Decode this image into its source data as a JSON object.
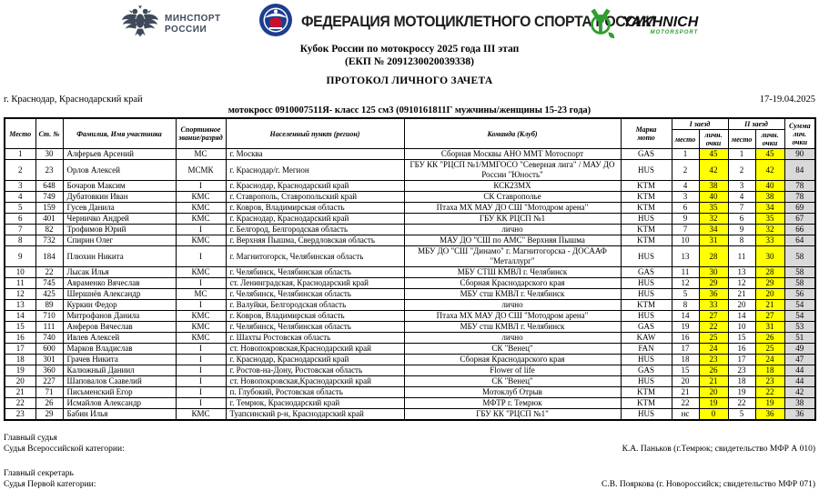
{
  "header": {
    "minsport_line1": "МИНСПОРТ",
    "minsport_line2": "РОССИИ",
    "fmsr_title": "ФЕДЕРАЦИЯ МОТОЦИКЛЕТНОГО СПОРТА РОССИИ",
    "yakhnich_name": "YAKHNICH",
    "yakhnich_sub": "MOTORSPORT"
  },
  "title": {
    "line1": "Кубок России по мотокроссу 2025 года III этап",
    "line2": "(ЕКП № 2091230020039338)",
    "line3": "ПРОТОКОЛ ЛИЧНОГО ЗАЧЕТА"
  },
  "meta": {
    "location": "г. Краснодар, Краснодарский край",
    "date": "17-19.04.2025",
    "class_line": "мотокросс 0910007511Я- класс 125 см3 (0910161811Г мужчины/женщины 15-23 года)"
  },
  "colors": {
    "highlight": "#ffff00",
    "total_bg": "#d9d9d9"
  },
  "table": {
    "headers": {
      "place": "Место",
      "start_no": "Ст. №",
      "name": "Фамилия, Имя участника",
      "rank": "Спортивное звание/разряд",
      "city": "Населенный пункт (регион)",
      "team": "Команда (Клуб)",
      "brand": "Марка мото",
      "race1": "I заезд",
      "race2": "II заезд",
      "sub_place": "место",
      "sub_points": "личн. очки",
      "total": "Сумма лич. очки"
    },
    "rows": [
      [
        "1",
        "30",
        "Алферьев Арсений",
        "МС",
        "г. Москва",
        "Сборная Москвы АНО ММТ Мотоспорт",
        "GAS",
        "1",
        "45",
        "1",
        "45",
        "90"
      ],
      [
        "2",
        "23",
        "Орлов Алексей",
        "МСМК",
        "г. Краснодар/г. Мегион",
        "ГБУ КК \"РЦСП №1/ММГОСО \"Северная лига\" / МАУ ДО России \"Юность\"",
        "HUS",
        "2",
        "42",
        "2",
        "42",
        "84"
      ],
      [
        "3",
        "648",
        "Бочаров Максим",
        "I",
        "г. Краснодар, Краснодарский край",
        "КСК23МХ",
        "KTM",
        "4",
        "38",
        "3",
        "40",
        "78"
      ],
      [
        "4",
        "749",
        "Дубатовкин Иван",
        "КМС",
        "г. Ставрополь, Ставропольский край",
        "СК Ставрополье",
        "KTM",
        "3",
        "40",
        "4",
        "38",
        "78"
      ],
      [
        "5",
        "159",
        "Гусев Данила",
        "КМС",
        "г. Ковров, Владимирская область",
        "Птаха МХ МАУ ДО СШ \"Мотодром арена\"",
        "KTM",
        "6",
        "35",
        "7",
        "34",
        "69"
      ],
      [
        "6",
        "401",
        "Черничко Андрей",
        "КМС",
        "г. Краснодар, Краснодарский край",
        "ГБУ КК РЦСП №1",
        "HUS",
        "9",
        "32",
        "6",
        "35",
        "67"
      ],
      [
        "7",
        "82",
        "Трофимов Юрий",
        "I",
        "г. Белгород, Белгородская область",
        "лично",
        "KTM",
        "7",
        "34",
        "9",
        "32",
        "66"
      ],
      [
        "8",
        "732",
        "Спирин Олег",
        "КМС",
        "г. Верхняя Пышма, Свердловская область",
        "МАУ ДО \"СШ по АМС\" Верхняя Пышма",
        "KTM",
        "10",
        "31",
        "8",
        "33",
        "64"
      ],
      [
        "9",
        "184",
        "Плюхин Никита",
        "I",
        "г. Магнитогорск, Челябинская область",
        "МБУ ДО \"СШ \"Динамо\" г. Магнитогорска - ДОСААФ \"Металлург\"",
        "HUS",
        "13",
        "28",
        "11",
        "30",
        "58"
      ],
      [
        "10",
        "22",
        "Лысак Илья",
        "КМС",
        "г. Челябинск, Челябинская область",
        "МБУ СТШ КМВЛ г. Челябинск",
        "GAS",
        "11",
        "30",
        "13",
        "28",
        "58"
      ],
      [
        "11",
        "745",
        "Авраменко Вячеслав",
        "I",
        "ст. Ленинградская, Краснодарский край",
        "Сборная Краснодарского края",
        "HUS",
        "12",
        "29",
        "12",
        "29",
        "58"
      ],
      [
        "12",
        "425",
        "Шершнёв Александр",
        "МС",
        "г. Челябинск, Челябинская область",
        "МБУ стш КМВЛ г. Челябинск",
        "HUS",
        "5",
        "36",
        "21",
        "20",
        "56"
      ],
      [
        "13",
        "89",
        "Куркин Федор",
        "I",
        "г. Валуйки, Белгородская область",
        "лично",
        "KTM",
        "8",
        "33",
        "20",
        "21",
        "54"
      ],
      [
        "14",
        "710",
        "Митрофанов Данила",
        "КМС",
        "г. Ковров, Владимирская область",
        "Птаха МХ МАУ ДО СШ \"Мотодром арена\"",
        "HUS",
        "14",
        "27",
        "14",
        "27",
        "54"
      ],
      [
        "15",
        "111",
        "Анферов Вячеслав",
        "КМС",
        "г. Челябинск, Челябинская область",
        "МБУ стш КМВЛ г. Челябинск",
        "GAS",
        "19",
        "22",
        "10",
        "31",
        "53"
      ],
      [
        "16",
        "740",
        "Ивлев Алексей",
        "КМС",
        "г. Шахты Ростовская область",
        "лично",
        "KAW",
        "16",
        "25",
        "15",
        "26",
        "51"
      ],
      [
        "17",
        "600",
        "Марков Владислав",
        "I",
        "ст. Новопокровская,Краснодарский край",
        "СК \"Венец\"",
        "FAN",
        "17",
        "24",
        "16",
        "25",
        "49"
      ],
      [
        "18",
        "301",
        "Грачев Никита",
        "I",
        "г. Краснодар, Краснодарский край",
        "Сборная Краснодарского края",
        "HUS",
        "18",
        "23",
        "17",
        "24",
        "47"
      ],
      [
        "19",
        "360",
        "Калюжный Даниил",
        "I",
        "г. Ростов-на-Дону, Ростовская область",
        "Flower of life",
        "GAS",
        "15",
        "26",
        "23",
        "18",
        "44"
      ],
      [
        "20",
        "227",
        "Шаповалов Саавелий",
        "I",
        "ст. Новопокровская,Краснодарский край",
        "СК \"Венец\"",
        "HUS",
        "20",
        "21",
        "18",
        "23",
        "44"
      ],
      [
        "21",
        "71",
        "Письменский Егор",
        "I",
        "п. Глубокий, Ростовская область",
        "Мотоклуб Отрыв",
        "KTM",
        "21",
        "20",
        "19",
        "22",
        "42"
      ],
      [
        "22",
        "26",
        "Исмайлов Александр",
        "I",
        "г. Темрюк, Краснодарский край",
        "МФТР г. Темрюк",
        "KTM",
        "22",
        "19",
        "22",
        "19",
        "38"
      ],
      [
        "23",
        "29",
        "Бабин Илья",
        "КМС",
        "Туапсинский р-н, Краснодарский край",
        "ГБУ КК \"РЦСП №1\"",
        "HUS",
        "нс",
        "0",
        "5",
        "36",
        "36"
      ]
    ]
  },
  "footer": {
    "chief_judge_title": "Главный судья",
    "chief_judge_category": "Судья Всероссийской категории:",
    "chief_judge_name": "К.А. Паньков (г.Темрюк; свидетельство МФР А 010)",
    "chief_secretary_title": "Главный секретарь",
    "chief_secretary_category": "Судья Первой категории:",
    "chief_secretary_name": "С.В. Пояркова (г. Новороссийск; свидетельство МФР 071)"
  }
}
